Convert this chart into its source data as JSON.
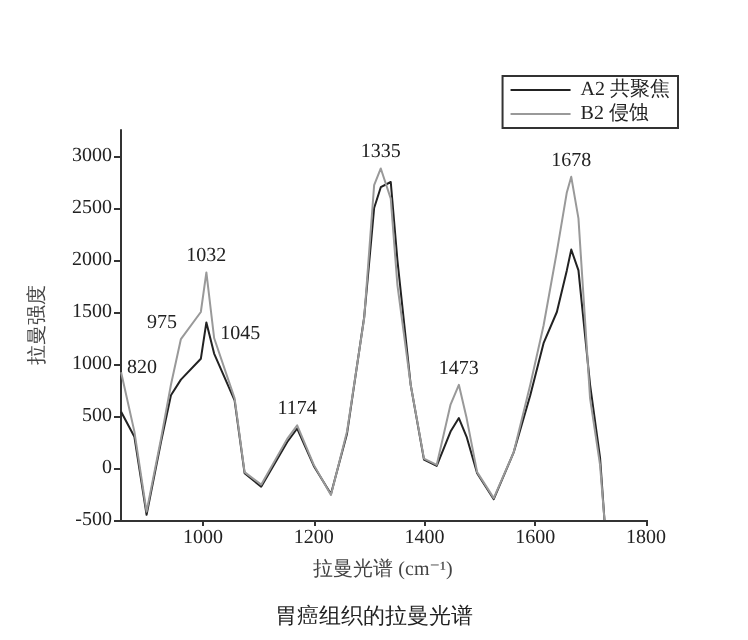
{
  "chart_data": {
    "type": "line",
    "xlabel": "拉曼光谱 (cm⁻¹)",
    "ylabel": "拉曼强度",
    "xlim": [
      850,
      1800
    ],
    "xticks": [
      1000,
      1200,
      1400,
      1600,
      1800
    ],
    "ylim": [
      -500,
      3250
    ],
    "yticks": [
      -500,
      0,
      500,
      1000,
      1500,
      2000,
      2500,
      3000
    ],
    "x": [
      852,
      876,
      898,
      924,
      942,
      960,
      996,
      1006,
      1020,
      1057,
      1075,
      1105,
      1152,
      1170,
      1200,
      1231,
      1260,
      1291,
      1309,
      1321,
      1339,
      1351,
      1375,
      1399,
      1422,
      1447,
      1462,
      1476,
      1495,
      1525,
      1561,
      1591,
      1615,
      1639,
      1657,
      1665,
      1678,
      1699,
      1717,
      1725
    ],
    "series": [
      {
        "name": "A2 共聚焦",
        "color": "#222222",
        "values": [
          540,
          300,
          -450,
          250,
          700,
          850,
          1050,
          1400,
          1100,
          650,
          -50,
          -180,
          250,
          380,
          20,
          -250,
          330,
          1450,
          2500,
          2700,
          2750,
          2000,
          800,
          80,
          20,
          350,
          480,
          300,
          -50,
          -300,
          150,
          700,
          1200,
          1500,
          1900,
          2100,
          1900,
          800,
          100,
          -500
        ]
      },
      {
        "name": "B2 侵蚀",
        "color": "#999999",
        "values": [
          920,
          350,
          -420,
          280,
          800,
          1240,
          1500,
          1880,
          1250,
          670,
          -40,
          -160,
          280,
          410,
          30,
          -260,
          350,
          1440,
          2720,
          2880,
          2590,
          1760,
          800,
          90,
          30,
          610,
          800,
          480,
          -40,
          -290,
          150,
          800,
          1370,
          2080,
          2650,
          2800,
          2400,
          670,
          30,
          -500
        ]
      }
    ],
    "annotations": [
      {
        "text": "820",
        "x": 852,
        "y": 920
      },
      {
        "text": "975",
        "x": 960,
        "y": 1240
      },
      {
        "text": "1032",
        "x": 1006,
        "y": 1880
      },
      {
        "text": "1045",
        "x": 1020,
        "y": 1250
      },
      {
        "text": "1174",
        "x": 1170,
        "y": 410
      },
      {
        "text": "1335",
        "x": 1321,
        "y": 2880
      },
      {
        "text": "1473",
        "x": 1462,
        "y": 800
      },
      {
        "text": "1678",
        "x": 1665,
        "y": 2800
      },
      "胃癌组织的拉曼光谱"
    ],
    "legend": "top right",
    "grid": false,
    "marker": "none",
    "line_style": "solid"
  }
}
